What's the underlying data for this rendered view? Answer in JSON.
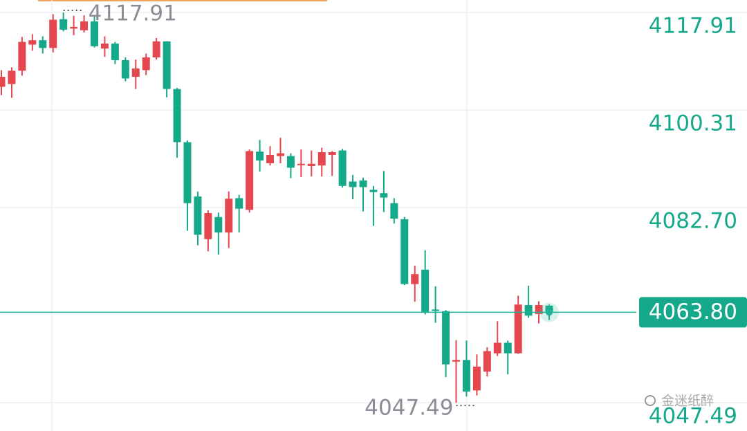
{
  "chart_data": {
    "type": "candlestick",
    "open": [
      4104.5,
      4105.0,
      4107.4,
      4112.1,
      4112.9,
      4111.5,
      4116.7,
      4115.0,
      4114.7,
      4116.3,
      4111.4,
      4112.3,
      4109.3,
      4106.3,
      4107.5,
      4109.8,
      4112.7,
      4104.1,
      4094.5,
      4084.7,
      4077.0,
      4081.0,
      4078.2,
      4084.4,
      4082.3,
      4092.8,
      4090.7,
      4092.0,
      4092.0,
      4090.4,
      4090.2,
      4090.3,
      4092.2,
      4093.0,
      4087.4,
      4087.6,
      4085.9,
      4085.3,
      4083.5,
      4080.6,
      4068.9,
      4071.5,
      4064.3,
      4064.0,
      4054.9,
      4055.2,
      4049.7,
      4053.1,
      4056.4,
      4058.3,
      4056.4,
      4065.1,
      4063.5,
      4065.0
    ],
    "high": [
      4107.5,
      4108.0,
      4113.5,
      4114.0,
      4113.6,
      4117.6,
      4117.91,
      4117.3,
      4117.4,
      4117.2,
      4113.6,
      4112.6,
      4109.8,
      4109.4,
      4110.5,
      4113.3,
      4112.7,
      4104.3,
      4094.8,
      4085.6,
      4082.2,
      4081.8,
      4085.6,
      4085.0,
      4093.2,
      4094.9,
      4093.8,
      4095.3,
      4092.5,
      4093.2,
      4093.0,
      4093.5,
      4092.9,
      4093.3,
      4088.6,
      4088.1,
      4086.6,
      4089.3,
      4084.4,
      4081.0,
      4072.2,
      4075.0,
      4068.5,
      4064.2,
      4058.8,
      4058.7,
      4056.2,
      4057.5,
      4062.2,
      4058.7,
      4066.8,
      4068.6,
      4065.8,
      4065.2
    ],
    "low": [
      4103.0,
      4102.5,
      4106.5,
      4111.0,
      4110.5,
      4110.7,
      4114.5,
      4113.8,
      4114.3,
      4111.6,
      4109.9,
      4108.6,
      4105.5,
      4104.1,
      4106.6,
      4109.4,
      4102.6,
      4091.7,
      4078.5,
      4075.9,
      4074.8,
      4074.2,
      4075.4,
      4078.2,
      4081.8,
      4089.2,
      4090.3,
      4090.7,
      4088.0,
      4088.2,
      4088.3,
      4088.3,
      4088.4,
      4086.3,
      4084.2,
      4082.0,
      4079.4,
      4081.9,
      4079.8,
      4068.7,
      4065.7,
      4063.4,
      4061.9,
      4052.1,
      4047.49,
      4048.6,
      4048.8,
      4052.2,
      4055.9,
      4052.6,
      4056.3,
      4062.8,
      4061.8,
      4062.4
    ],
    "close": [
      4106.3,
      4107.4,
      4112.6,
      4112.9,
      4111.5,
      4116.6,
      4114.8,
      4115.3,
      4116.3,
      4111.8,
      4112.3,
      4109.3,
      4106.0,
      4107.8,
      4109.8,
      4112.7,
      4104.1,
      4094.5,
      4083.5,
      4077.8,
      4081.7,
      4078.2,
      4084.3,
      4082.5,
      4092.9,
      4091.2,
      4092.2,
      4092.5,
      4089.9,
      4090.6,
      4090.6,
      4092.7,
      4092.7,
      4086.6,
      4086.4,
      4086.4,
      4085.5,
      4084.5,
      4080.7,
      4068.9,
      4070.7,
      4063.9,
      4064.1,
      4054.4,
      4055.2,
      4049.5,
      4054.0,
      4056.8,
      4058.3,
      4056.4,
      4065.2,
      4063.2,
      4065.1,
      4063.8
    ],
    "up_color": "#e5474f",
    "down_color": "#15a98a",
    "ylim": [
      4042.38,
      4120.16
    ],
    "yticks": [
      4117.91,
      4100.31,
      {
        "value": 4082.7,
        "label": "4082.70"
      },
      4047.49
    ],
    "grid": true,
    "current_price": {
      "value": 4063.8,
      "label": "4063.80"
    },
    "annotations": [
      {
        "value": 4117.91,
        "label": "4117.91"
      },
      {
        "value": 4047.49,
        "label": "4047.49"
      }
    ],
    "watermark": "金迷纸醉"
  }
}
